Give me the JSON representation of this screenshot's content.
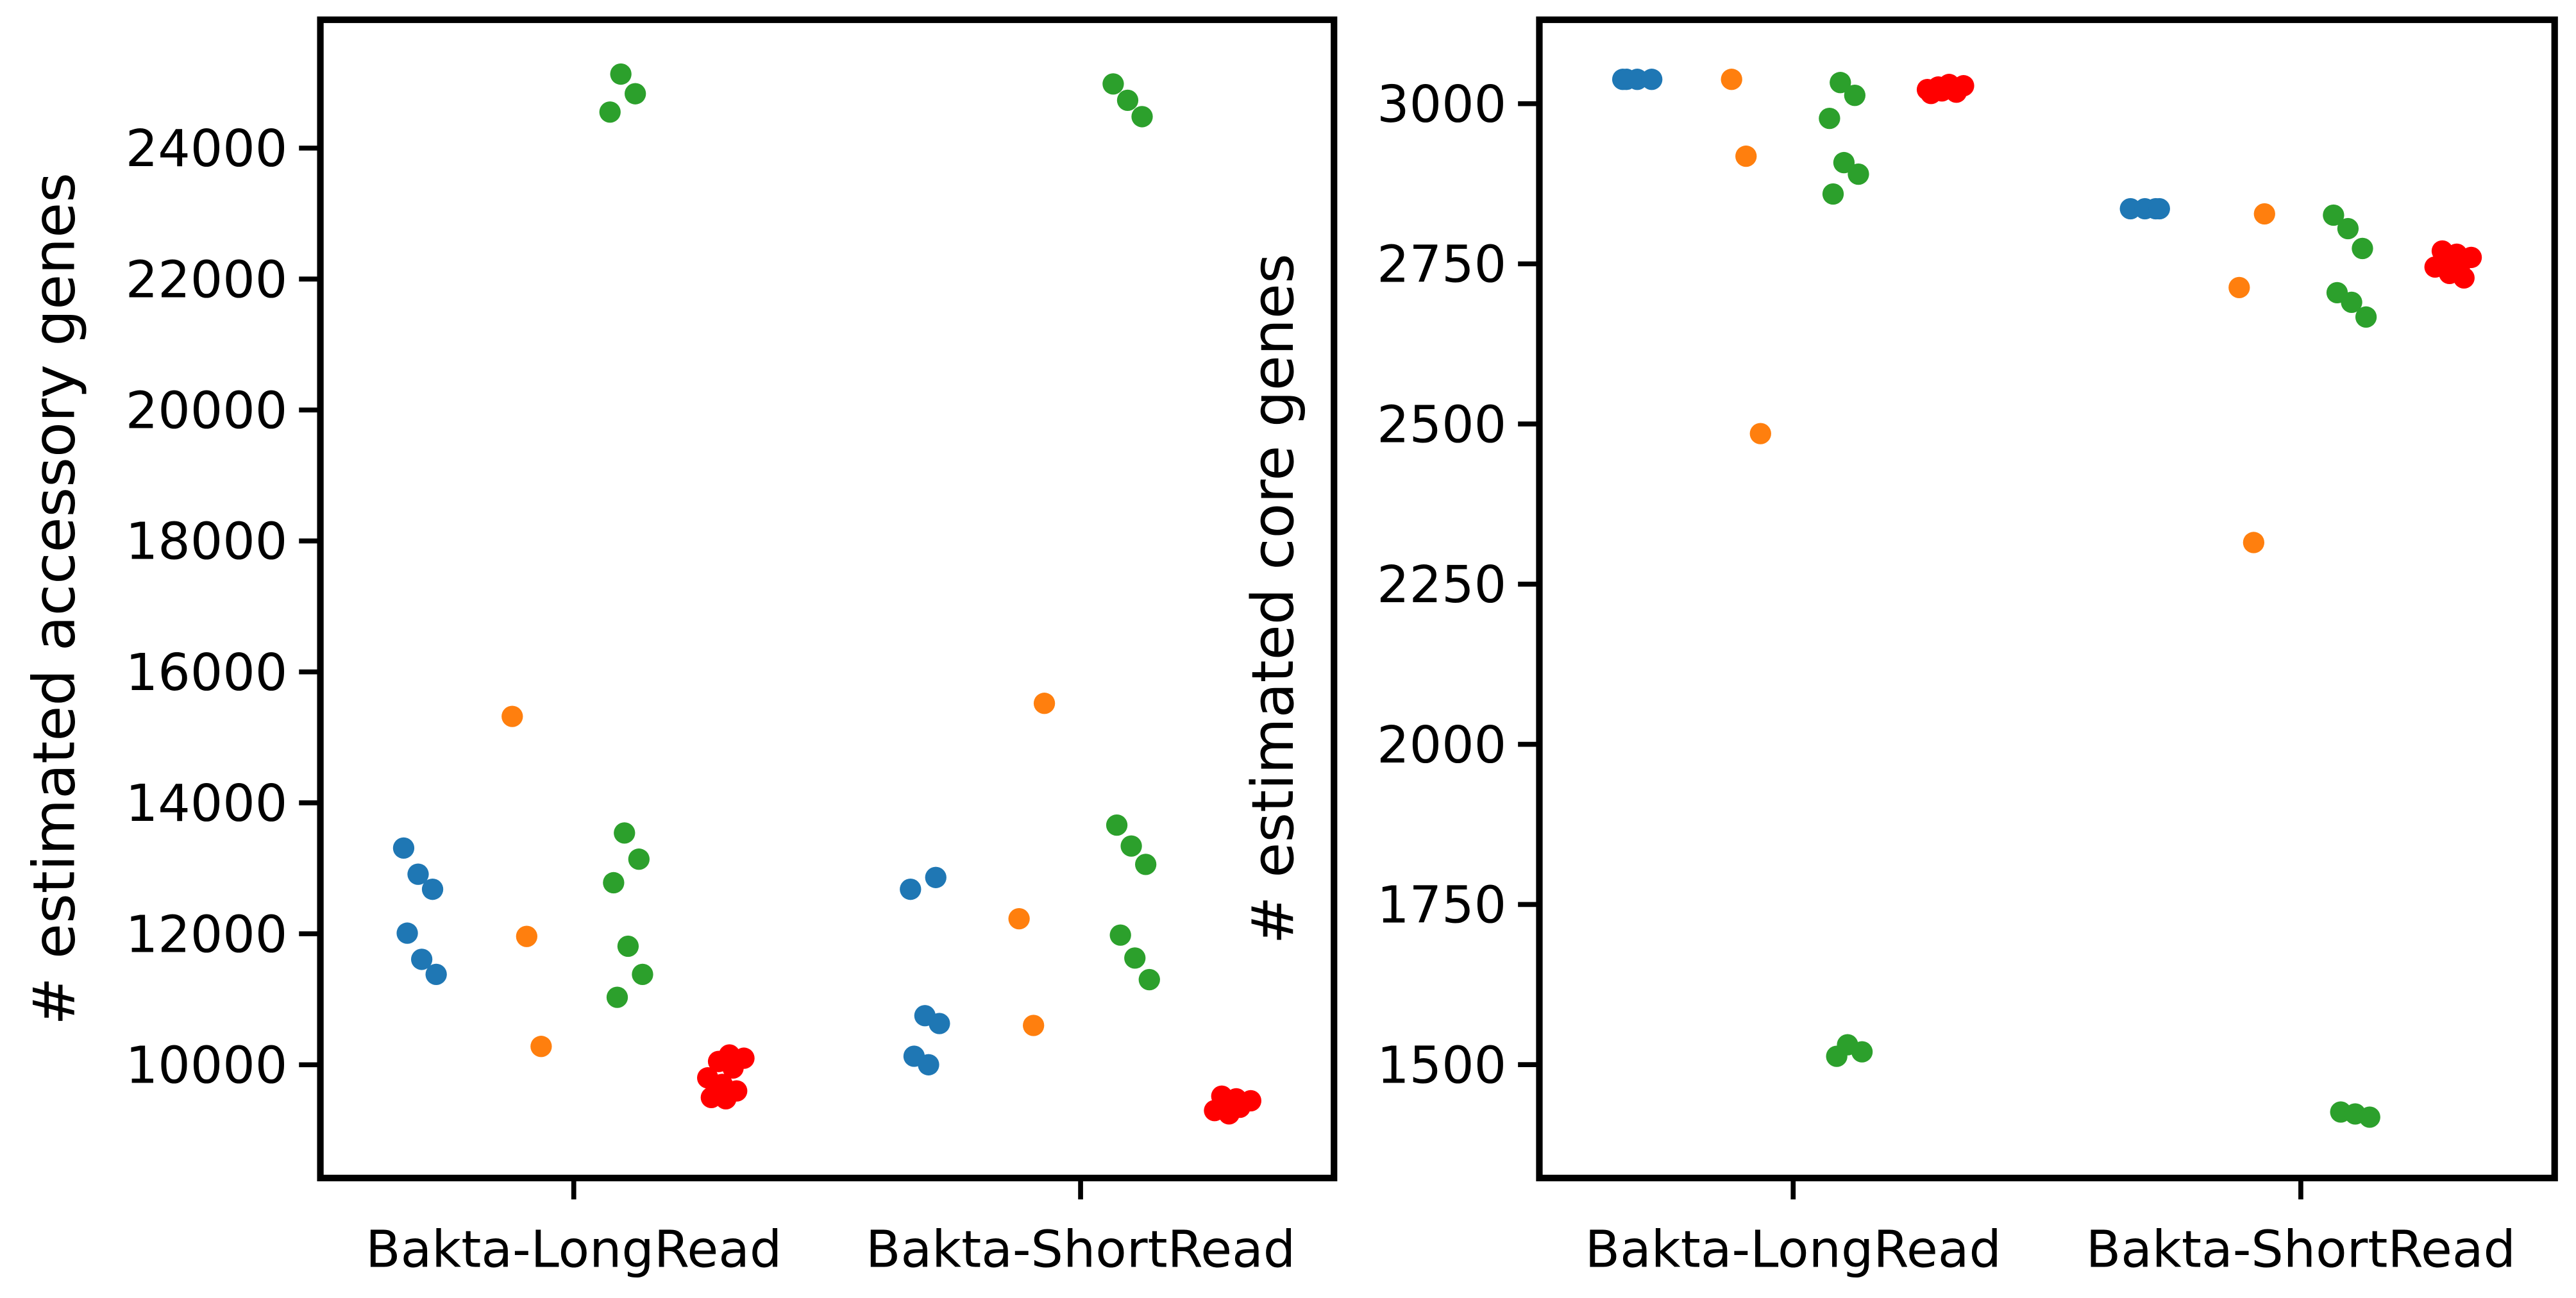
{
  "chart_data": [
    {
      "type": "strip",
      "ylabel": "# estimated accessory genes",
      "categories": [
        "Bakta-LongRead",
        "Bakta-ShortRead"
      ],
      "ylim": [
        8270,
        25960
      ],
      "yticks": [
        10000,
        12000,
        14000,
        16000,
        18000,
        20000,
        22000,
        24000
      ],
      "series": [
        {
          "color": "#1f77b4",
          "values": [
            [
              13310,
              12910,
              12680,
              12010,
              11610,
              11380
            ],
            [
              12860,
              12680,
              10750,
              10630,
              10130,
              10000
            ]
          ]
        },
        {
          "color": "#ff7f0e",
          "values": [
            [
              15320,
              11960,
              10280
            ],
            [
              15520,
              12230,
              10600
            ]
          ]
        },
        {
          "color": "#2ca02c",
          "values": [
            [
              25130,
              24830,
              24550,
              13540,
              13140,
              12780,
              11810,
              11380,
              11030
            ],
            [
              24980,
              24730,
              24480,
              13660,
              13340,
              13060,
              11980,
              11630,
              11300
            ]
          ]
        },
        {
          "color": "#ff0000",
          "values": [
            [
              10150,
              10100,
              10050,
              9950,
              9800,
              9700,
              9600,
              9500,
              9480
            ],
            [
              9520,
              9480,
              9450,
              9400,
              9350,
              9300,
              9250
            ]
          ]
        }
      ]
    },
    {
      "type": "strip",
      "ylabel": "# estimated core genes",
      "categories": [
        "Bakta-LongRead",
        "Bakta-ShortRead"
      ],
      "ylim": [
        1323,
        3131
      ],
      "yticks": [
        1500,
        1750,
        2000,
        2250,
        2500,
        2750,
        3000
      ],
      "series": [
        {
          "color": "#1f77b4",
          "values": [
            [
              3038,
              3038,
              3038,
              3038
            ],
            [
              2836,
              2836,
              2836,
              2836
            ]
          ]
        },
        {
          "color": "#ff7f0e",
          "values": [
            [
              3038,
              2918,
              2485
            ],
            [
              2828,
              2713,
              2315
            ]
          ]
        },
        {
          "color": "#2ca02c",
          "values": [
            [
              3033,
              3013,
              2977,
              2908,
              2890,
              2859,
              1531,
              1520,
              1513
            ],
            [
              2826,
              2805,
              2774,
              2705,
              2690,
              2667,
              1426,
              1423,
              1418
            ]
          ]
        },
        {
          "color": "#ff0000",
          "values": [
            [
              3030,
              3028,
              3026,
              3024,
              3022,
              3020,
              3018,
              3016
            ],
            [
              2770,
              2765,
              2760,
              2755,
              2750,
              2745,
              2735,
              2728
            ]
          ]
        }
      ]
    }
  ]
}
